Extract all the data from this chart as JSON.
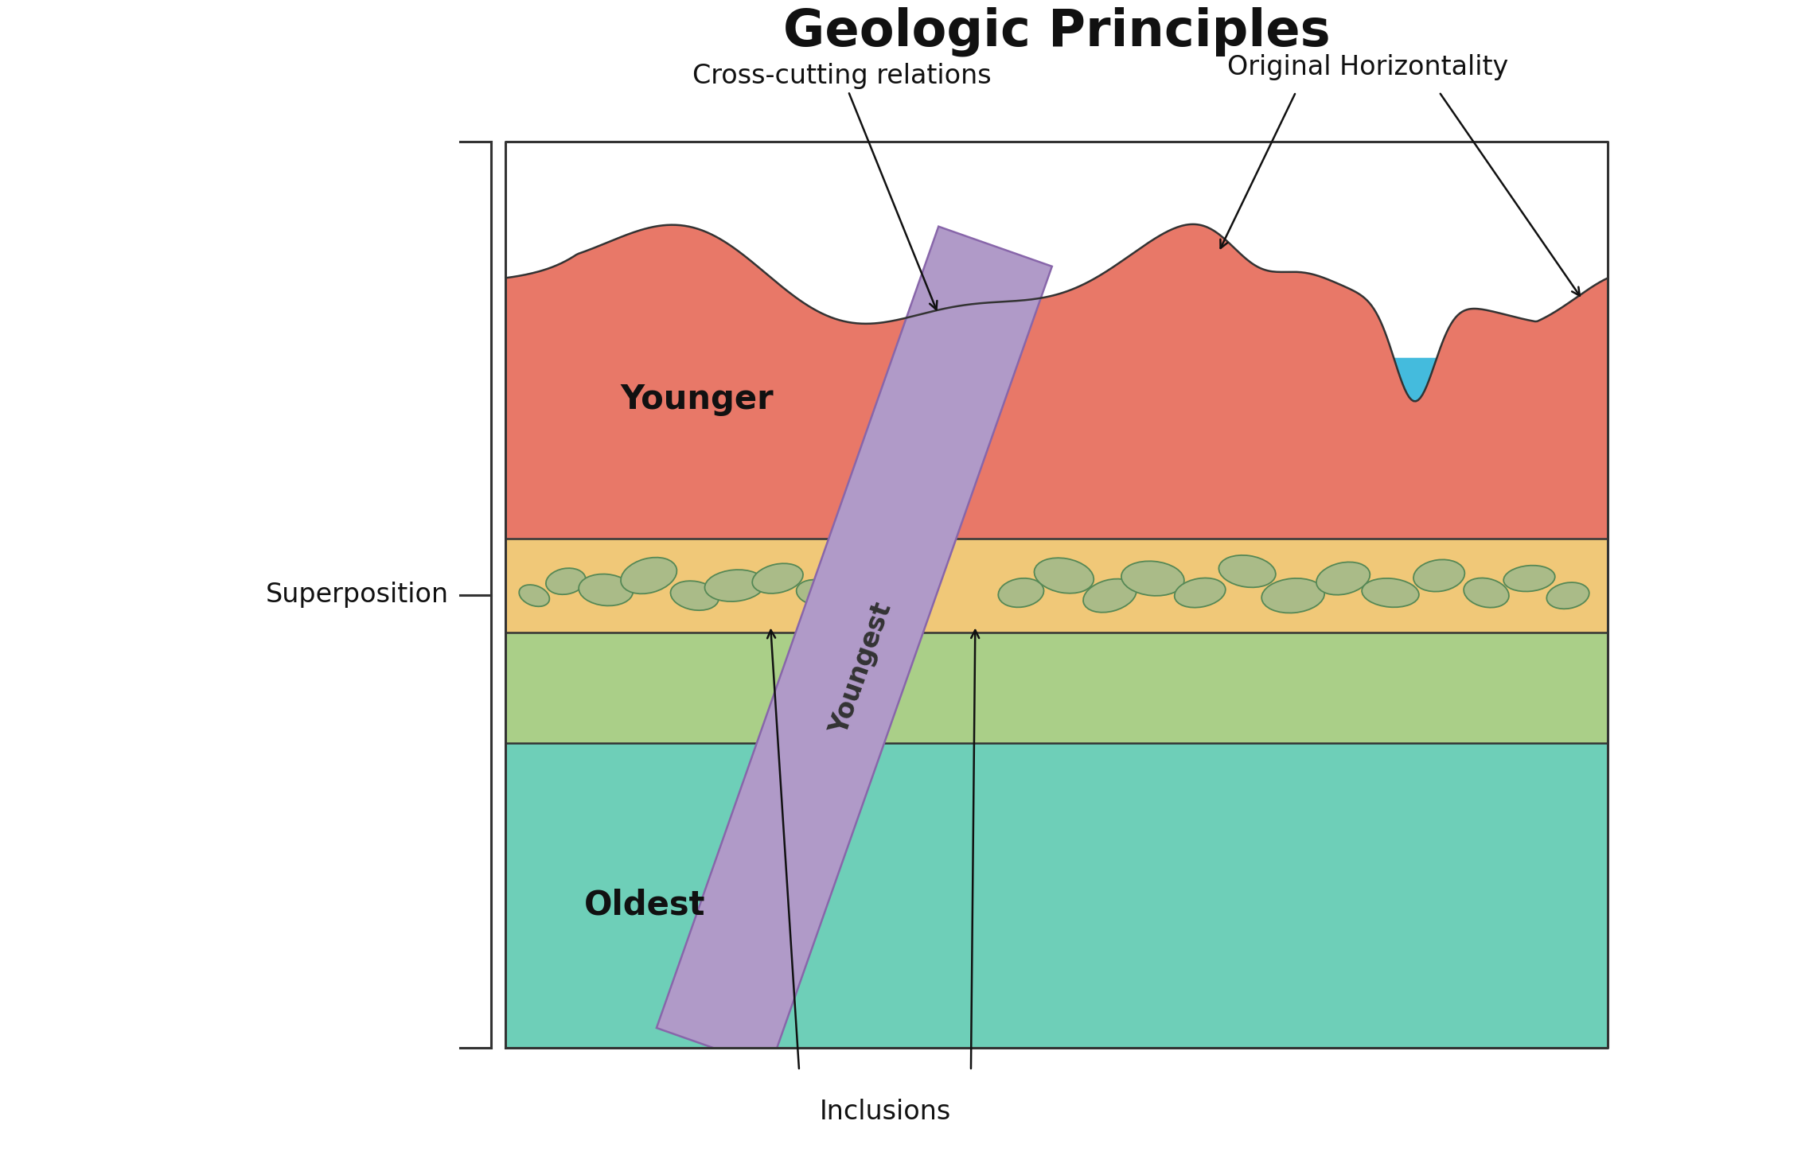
{
  "title": "Geologic Principles",
  "title_fontsize": 46,
  "bg_color": "#ffffff",
  "border_color": "#333333",
  "layer_colors": {
    "oldest": "#6ECFB8",
    "middle_green": "#AACF88",
    "pebble_band": "#F0C878",
    "younger": "#E87868"
  },
  "dike_color": "#B09AC8",
  "dike_edge_color": "#8866AA",
  "pebble_fill": "#AABB88",
  "pebble_edge": "#558855",
  "water_color": "#44BBDD",
  "labels": {
    "younger": "Younger",
    "oldest": "Oldest",
    "youngest": "Youngest",
    "superposition": "Superposition",
    "cross_cutting": "Cross-cutting relations",
    "original_horizontality": "Original Horizontality",
    "inclusions": "Inclusions"
  },
  "label_fontsize": 24,
  "label_bold_fontsize": 30
}
